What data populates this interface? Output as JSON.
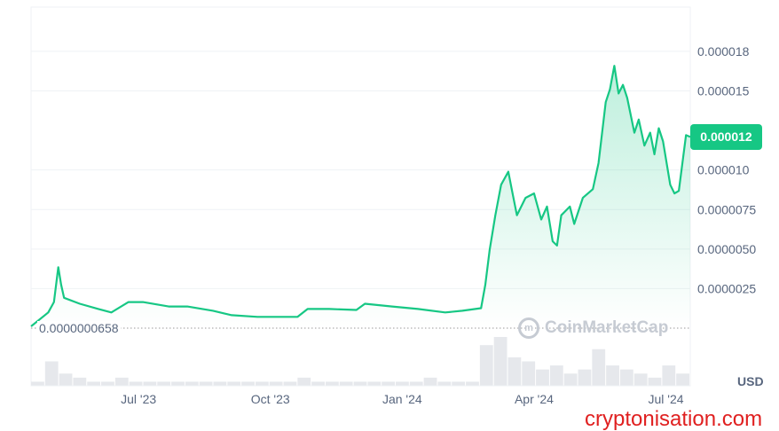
{
  "chart_data": {
    "type": "area",
    "title": "",
    "currency_label": "USD",
    "x_unit": "days since chart start (start ≈ mid-Apr 2023)",
    "y_unit": "price in 1e-6 USD",
    "x_ticks": [
      {
        "label": "Jul '23",
        "day": 75
      },
      {
        "label": "Oct '23",
        "day": 167
      },
      {
        "label": "Jan '24",
        "day": 259
      },
      {
        "label": "Apr '24",
        "day": 351
      },
      {
        "label": "Jul '24",
        "day": 443
      }
    ],
    "y_ticks": [
      {
        "label": "0.000018",
        "value": 17.5
      },
      {
        "label": "0.000015",
        "value": 15
      },
      {
        "label": "0.000010",
        "value": 10
      },
      {
        "label": "0.0000075",
        "value": 7.5
      },
      {
        "label": "0.0000050",
        "value": 5
      },
      {
        "label": "0.0000025",
        "value": 2.5
      }
    ],
    "xlim": [
      0,
      460
    ],
    "ylim": [
      0,
      20.3
    ],
    "current_price_label": "0.000012",
    "current_price": 12.1,
    "min_price_label": "0.0000000658",
    "line_color": "#16c784",
    "series": [
      {
        "name": "Price",
        "points": [
          [
            0,
            0.11
          ],
          [
            12,
            0.99
          ],
          [
            16,
            1.65
          ],
          [
            19,
            3.85
          ],
          [
            21,
            2.75
          ],
          [
            23,
            1.92
          ],
          [
            34,
            1.54
          ],
          [
            47,
            1.21
          ],
          [
            56,
            0.99
          ],
          [
            68,
            1.65
          ],
          [
            78,
            1.65
          ],
          [
            96,
            1.37
          ],
          [
            109,
            1.37
          ],
          [
            127,
            1.1
          ],
          [
            140,
            0.82
          ],
          [
            158,
            0.71
          ],
          [
            177,
            0.71
          ],
          [
            186,
            0.71
          ],
          [
            193,
            1.21
          ],
          [
            208,
            1.21
          ],
          [
            227,
            1.15
          ],
          [
            233,
            1.54
          ],
          [
            252,
            1.37
          ],
          [
            270,
            1.21
          ],
          [
            289,
            0.99
          ],
          [
            301,
            1.1
          ],
          [
            314,
            1.26
          ],
          [
            317,
            2.75
          ],
          [
            320,
            4.95
          ],
          [
            324,
            7.14
          ],
          [
            328,
            9.07
          ],
          [
            333,
            9.89
          ],
          [
            336,
            8.52
          ],
          [
            339,
            7.14
          ],
          [
            345,
            8.24
          ],
          [
            351,
            8.52
          ],
          [
            356,
            6.87
          ],
          [
            360,
            7.69
          ],
          [
            364,
            5.49
          ],
          [
            367,
            5.22
          ],
          [
            370,
            7.14
          ],
          [
            376,
            7.69
          ],
          [
            379,
            6.59
          ],
          [
            385,
            8.24
          ],
          [
            392,
            8.79
          ],
          [
            396,
            10.44
          ],
          [
            401,
            14.29
          ],
          [
            404,
            15.11
          ],
          [
            407,
            16.59
          ],
          [
            410,
            14.84
          ],
          [
            413,
            15.38
          ],
          [
            416,
            14.56
          ],
          [
            421,
            12.36
          ],
          [
            424,
            13.19
          ],
          [
            428,
            11.54
          ],
          [
            432,
            12.36
          ],
          [
            435,
            10.99
          ],
          [
            438,
            12.64
          ],
          [
            441,
            11.81
          ],
          [
            446,
            9.07
          ],
          [
            449,
            8.52
          ],
          [
            452,
            8.68
          ],
          [
            457,
            12.2
          ],
          [
            460,
            12.09
          ]
        ]
      }
    ],
    "volume": [
      1,
      6,
      3,
      2,
      1,
      1,
      2,
      1,
      1,
      1,
      1,
      1,
      1,
      1,
      1,
      1,
      1,
      1,
      1,
      2,
      1,
      1,
      1,
      1,
      1,
      1,
      1,
      1,
      2,
      1,
      1,
      1,
      10,
      12,
      7,
      6,
      4,
      5,
      3,
      4,
      9,
      5,
      4,
      3,
      2,
      5,
      3
    ],
    "watermark": "CoinMarketCap"
  },
  "overlay": {
    "site_watermark": "cryptonisation.com"
  }
}
